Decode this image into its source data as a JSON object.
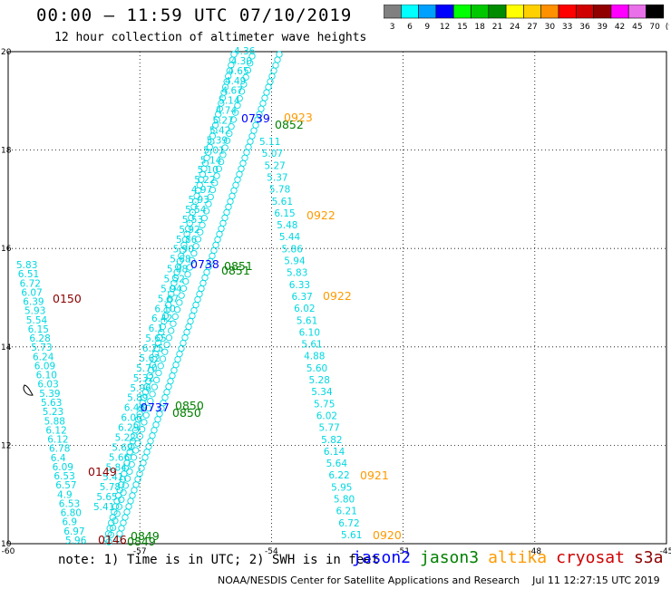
{
  "header": {
    "title": "00:00 – 11:59 UTC 07/10/2019",
    "subtitle": "12 hour collection of altimeter wave heights"
  },
  "legend": {
    "unit": "(ft)",
    "bins": [
      {
        "label": "3",
        "color": "#808080"
      },
      {
        "label": "6",
        "color": "#00ffff"
      },
      {
        "label": "9",
        "color": "#00a0ff"
      },
      {
        "label": "12",
        "color": "#0000ff"
      },
      {
        "label": "15",
        "color": "#00ff00"
      },
      {
        "label": "18",
        "color": "#00c800"
      },
      {
        "label": "21",
        "color": "#008c00"
      },
      {
        "label": "24",
        "color": "#ffff00"
      },
      {
        "label": "27",
        "color": "#ffd000"
      },
      {
        "label": "30",
        "color": "#ff9000"
      },
      {
        "label": "33",
        "color": "#ff0000"
      },
      {
        "label": "36",
        "color": "#d00000"
      },
      {
        "label": "39",
        "color": "#900000"
      },
      {
        "label": "42",
        "color": "#ff00ff"
      },
      {
        "label": "45",
        "color": "#e870e8"
      },
      {
        "label": "70",
        "color": "#000000"
      }
    ]
  },
  "map": {
    "lon_range": [
      -60,
      -45
    ],
    "lat_range": [
      10,
      20
    ],
    "x_ticks": [
      "-60",
      "-57",
      "-54",
      "-51",
      "-48",
      "-45"
    ],
    "y_ticks": [
      "10",
      "12",
      "14",
      "16",
      "18",
      "20"
    ],
    "grid": "dotted"
  },
  "tracks": {
    "west_track": {
      "values": [
        "5.83",
        "6.51",
        "6.72",
        "6.07",
        "6.39",
        "5.93",
        "5.54",
        "6.15",
        "6.28",
        "5.73",
        "6.24",
        "6.09",
        "6.10",
        "6.03",
        "5.39",
        "5.63",
        "5.23",
        "5.88",
        "6.12",
        "6.12",
        "6.78",
        "6.4",
        "6.09",
        "6.53",
        "6.57",
        "4.9",
        "6.53",
        "6.80",
        "6.9",
        "6.97",
        "5.96"
      ]
    },
    "center_track": {
      "values": [
        "4.36",
        "4.30",
        "4.65",
        "4.49",
        "4.67",
        "5.14",
        "4.74",
        "5.27",
        "5.42",
        "5.39",
        "5.01",
        "5.14",
        "5.10",
        "5.22",
        "4.97",
        "5.93",
        "5.54",
        "5.53",
        "5.92",
        "5.86",
        "5.90",
        "5.68",
        "5.88",
        "5.52",
        "5.94",
        "5.67",
        "6.10",
        "6.42",
        "6.1",
        "5.65",
        "6.25",
        "5.62",
        "5.70",
        "5.32",
        "5.96",
        "5.89",
        "6.46",
        "6.06",
        "6.29",
        "5.22",
        "5.69",
        "5.66",
        "5.84",
        "5.41",
        "5.78",
        "5.65",
        "5.41"
      ]
    },
    "east_track": {
      "values": [
        "5.11",
        "5.07",
        "5.27",
        "5.37",
        "5.78",
        "5.61",
        "6.15",
        "5.48",
        "5.44",
        "5.86",
        "5.94",
        "5.83",
        "6.33",
        "6.37",
        "6.02",
        "5.61",
        "6.10",
        "5.61",
        "4.88",
        "5.60",
        "5.28",
        "5.34",
        "5.75",
        "6.02",
        "5.77",
        "5.82",
        "6.14",
        "5.64",
        "6.22",
        "5.95",
        "5.80",
        "6.21",
        "6.72",
        "5.61"
      ]
    }
  },
  "pass_labels": [
    {
      "text": "0150",
      "color": "#8b0000"
    },
    {
      "text": "0149",
      "color": "#8b0000"
    },
    {
      "text": "0146",
      "color": "#8b0000"
    },
    {
      "text": "0737",
      "color": "#0000ff"
    },
    {
      "text": "0738",
      "color": "#0000ff"
    },
    {
      "text": "0739",
      "color": "#0000ff"
    },
    {
      "text": "0850",
      "color": "#008000"
    },
    {
      "text": "0850",
      "color": "#008000"
    },
    {
      "text": "0851",
      "color": "#008000"
    },
    {
      "text": "0851",
      "color": "#008000"
    },
    {
      "text": "0852",
      "color": "#008000"
    },
    {
      "text": "0849",
      "color": "#008000"
    },
    {
      "text": "0849",
      "color": "#008000"
    },
    {
      "text": "0923",
      "color": "#ff9a00"
    },
    {
      "text": "0922",
      "color": "#ff9a00"
    },
    {
      "text": "0922",
      "color": "#ff9a00"
    },
    {
      "text": "0921",
      "color": "#ff9a00"
    },
    {
      "text": "0920",
      "color": "#ff9a00"
    }
  ],
  "note": "note: 1) Time is in UTC; 2) SWH is in feet",
  "missions": [
    {
      "name": "jason2",
      "color": "#0000ff"
    },
    {
      "name": "jason3",
      "color": "#008000"
    },
    {
      "name": "altika",
      "color": "#ff9a00"
    },
    {
      "name": "cryosat",
      "color": "#d00000"
    },
    {
      "name": "s3a",
      "color": "#8b0000"
    }
  ],
  "footer": "NOAA/NESDIS Center for Satellite Applications and Research    Jul 11 12:27:15 UTC 2019"
}
